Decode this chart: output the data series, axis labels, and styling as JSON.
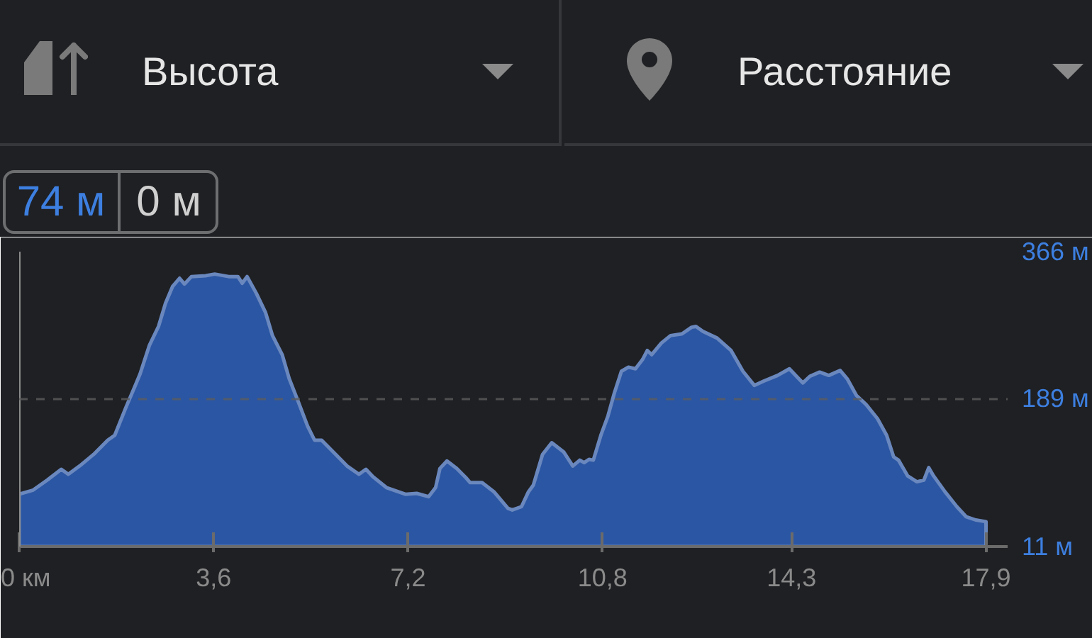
{
  "chart_data": {
    "type": "area",
    "xlabel": "Расстояние",
    "ylabel": "Высота",
    "annotations": [
      "74 м",
      "0 м"
    ],
    "x": [
      0,
      0.26,
      0.52,
      0.78,
      0.91,
      1.12,
      1.38,
      1.64,
      1.77,
      1.98,
      2.15,
      2.24,
      2.41,
      2.58,
      2.71,
      2.84,
      2.97,
      3.06,
      3.19,
      3.45,
      3.62,
      3.88,
      4.05,
      4.13,
      4.22,
      4.39,
      4.56,
      4.69,
      4.87,
      5.0,
      5.17,
      5.34,
      5.47,
      5.6,
      5.86,
      6.07,
      6.29,
      6.42,
      6.55,
      6.8,
      7.15,
      7.36,
      7.58,
      7.71,
      7.79,
      7.92,
      8.1,
      8.27,
      8.35,
      8.57,
      8.79,
      9.05,
      9.13,
      9.3,
      9.43,
      9.52,
      9.69,
      9.86,
      10.08,
      10.25,
      10.38,
      10.46,
      10.55,
      10.63,
      10.77,
      10.9,
      11.02,
      11.15,
      11.28,
      11.41,
      11.54,
      11.63,
      11.71,
      11.89,
      12.06,
      12.27,
      12.45,
      12.53,
      12.66,
      12.92,
      13.18,
      13.4,
      13.61,
      13.78,
      14.04,
      14.26,
      14.39,
      14.51,
      14.64,
      14.82,
      14.99,
      15.2,
      15.33,
      15.5,
      15.68,
      15.89,
      16.06,
      16.19,
      16.28,
      16.45,
      16.62,
      16.75,
      16.84,
      16.93,
      17.14,
      17.36,
      17.53,
      17.71,
      17.9
    ],
    "series": [
      {
        "color": "#2b56a3",
        "values": [
          74,
          79,
          91,
          104,
          98,
          108,
          122,
          139,
          145,
          179,
          205,
          219,
          253,
          276,
          304,
          324,
          334,
          327,
          336,
          337,
          339,
          336,
          336,
          328,
          336,
          316,
          293,
          265,
          242,
          213,
          185,
          156,
          139,
          139,
          122,
          108,
          98,
          104,
          95,
          82,
          74,
          75,
          71,
          82,
          105,
          114,
          105,
          94,
          88,
          88,
          77,
          57,
          55,
          59,
          77,
          85,
          122,
          136,
          125,
          108,
          115,
          112,
          116,
          115,
          145,
          168,
          196,
          222,
          227,
          225,
          236,
          247,
          242,
          256,
          265,
          267,
          275,
          276,
          270,
          262,
          247,
          222,
          205,
          210,
          217,
          225,
          216,
          208,
          216,
          221,
          217,
          223,
          213,
          193,
          182,
          165,
          145,
          119,
          115,
          96,
          89,
          91,
          106,
          96,
          77,
          59,
          47,
          43,
          41
        ]
      }
    ],
    "xlim": [
      0,
      18.3
    ],
    "xticks": [
      {
        "value": 0,
        "label": "0 км"
      },
      {
        "value": 3.6,
        "label": "3,6"
      },
      {
        "value": 7.2,
        "label": "7,2"
      },
      {
        "value": 10.8,
        "label": "10,8"
      },
      {
        "value": 14.3,
        "label": "14,3"
      },
      {
        "value": 17.9,
        "label": "17,9"
      }
    ],
    "ylim": [
      11,
      366
    ],
    "yticks": [
      {
        "value": 11,
        "label": "11 м"
      },
      {
        "value": 189,
        "label": "189 м"
      },
      {
        "value": 366,
        "label": "366 м"
      }
    ],
    "grid": "y",
    "ref_lines": [
      {
        "axis": "x",
        "value": 0,
        "color": "#8a8a8a"
      }
    ]
  }
}
